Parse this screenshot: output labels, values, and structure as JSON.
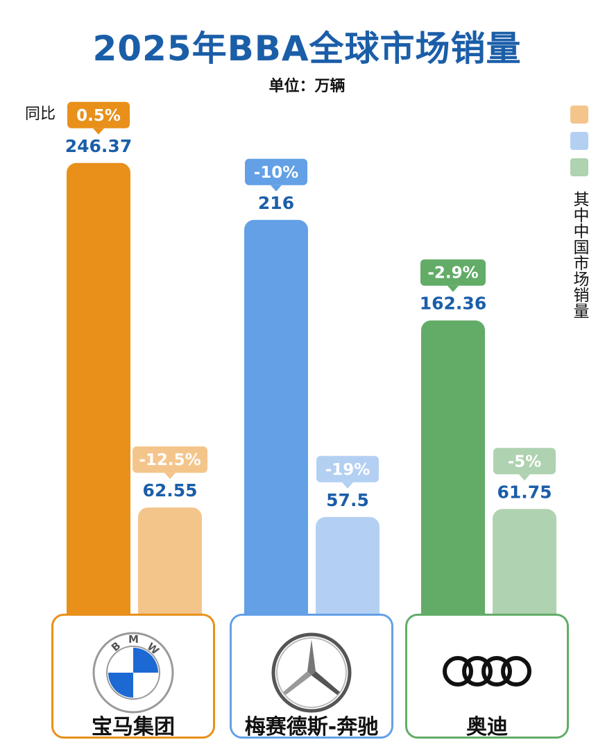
{
  "title": "2025年BBA全球市场销量",
  "unit": "单位：万辆",
  "yoy_label": "同比",
  "legend_label": "其中中国市场销量",
  "colors": {
    "title": "#1b5ea8",
    "bmw_global": "#e8901a",
    "bmw_china": "#f4c58b",
    "benz_global": "#63a0e6",
    "benz_china": "#b3d0f3",
    "audi_global": "#62ac67",
    "audi_china": "#afd2b0",
    "value_text": "#1b5ea8"
  },
  "brands": [
    {
      "name": "宝马集团",
      "logo": "bmw-logo-icon",
      "border": "#e8901a"
    },
    {
      "name": "梅赛德斯-奔驰",
      "logo": "mercedes-star-icon",
      "border": "#63a0e6"
    },
    {
      "name": "奥迪",
      "logo": "audi-rings-icon",
      "border": "#62ac67"
    }
  ],
  "chart_data": {
    "type": "bar",
    "title": "2025年BBA全球市场销量",
    "unit": "万辆",
    "categories": [
      "宝马集团",
      "梅赛德斯-奔驰",
      "奥迪"
    ],
    "series": [
      {
        "name": "",
        "values": [
          246.37,
          216,
          162.36
        ],
        "yoy": [
          "0.5%",
          "-10%",
          "-2.9%"
        ],
        "value_labels": [
          "246.37",
          "216",
          "162.36"
        ]
      },
      {
        "name": "其中中国市场销量",
        "values": [
          62.55,
          57.5,
          61.75
        ],
        "yoy": [
          "-12.5%",
          "-19%",
          "-5%"
        ],
        "value_labels": [
          "62.55",
          "57.5",
          "61.75"
        ]
      }
    ],
    "grid": false,
    "legend": "right"
  }
}
